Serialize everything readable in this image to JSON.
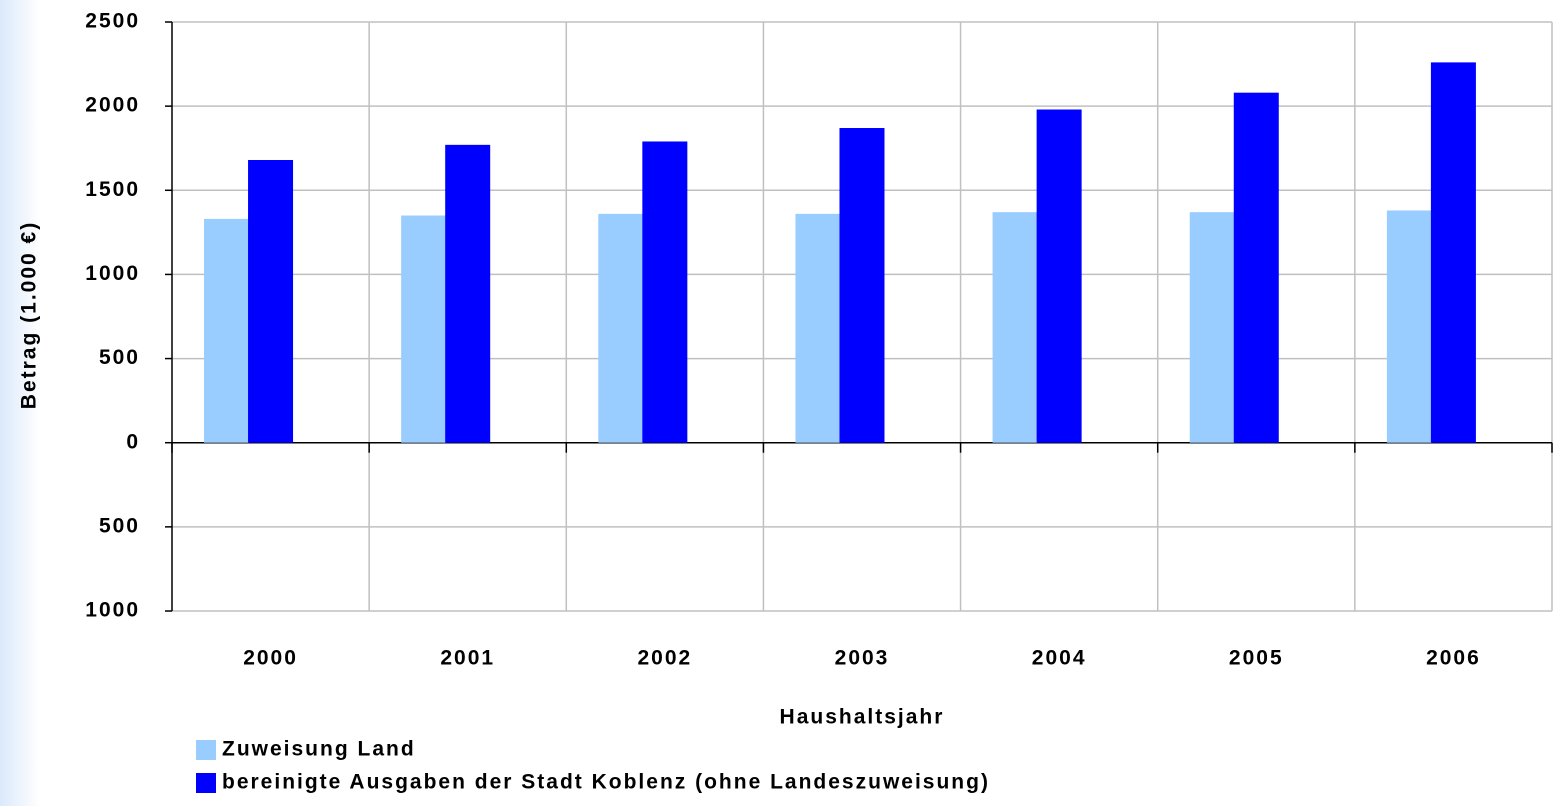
{
  "chart_data": {
    "type": "bar",
    "x_label": "Haushaltsjahr",
    "y_label": "Betrag (1.000 €)",
    "categories": [
      "2000",
      "2001",
      "2002",
      "2003",
      "2004",
      "2005",
      "2006"
    ],
    "series": [
      {
        "name": "Zuweisung Land",
        "color": "#99ccff",
        "values": [
          1330,
          1350,
          1360,
          1360,
          1370,
          1370,
          1380
        ]
      },
      {
        "name": "bereinigte Ausgaben der Stadt Koblenz (ohne Landeszuweisung)",
        "color": "#0000ff",
        "values": [
          1680,
          1770,
          1790,
          1870,
          1980,
          2080,
          2260
        ]
      }
    ],
    "ylim": [
      -1000,
      2500
    ],
    "yticks": [
      {
        "value": -1000,
        "label": "1000"
      },
      {
        "value": -500,
        "label": "500"
      },
      0,
      500,
      1000,
      1500,
      2000,
      2500
    ],
    "grid": true
  }
}
